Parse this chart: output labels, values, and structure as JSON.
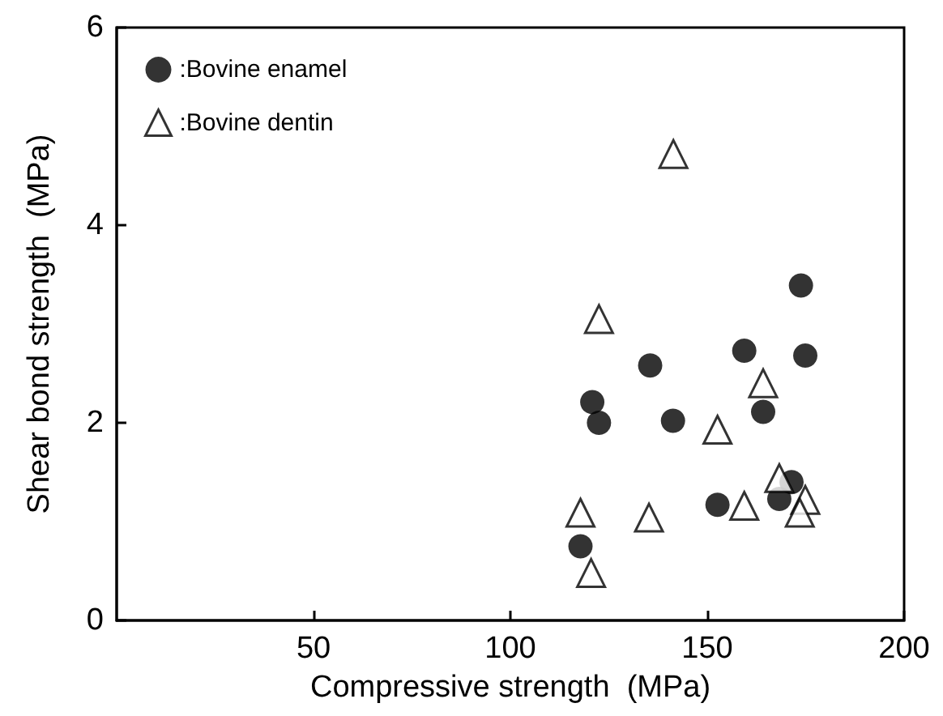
{
  "chart_data": {
    "type": "scatter",
    "xlabel": "Compressive strength  (MPa)",
    "ylabel": "Shear bond strength  (MPa)",
    "xlim": [
      0,
      200
    ],
    "xticks": [
      50,
      100,
      150,
      200
    ],
    "ylim": [
      0,
      6
    ],
    "yticks": [
      0,
      2,
      4,
      6
    ],
    "grid": false,
    "legend": "top left",
    "series": [
      {
        "name": ":Bovine enamel",
        "color": "#000000",
        "marker": "circle",
        "x": [
          173.8,
          159.4,
          174.9,
          135.5,
          120.8,
          122.5,
          141.3,
          164.2,
          152.6,
          171.4,
          168.3,
          117.8
        ],
        "values": [
          3.39,
          2.73,
          2.68,
          2.58,
          2.21,
          2.0,
          2.02,
          2.11,
          1.17,
          1.4,
          1.23,
          0.75
        ]
      },
      {
        "name": ":Bovine dentin",
        "color": "#000000",
        "marker": "triangle",
        "x": [
          141.4,
          122.5,
          164.2,
          152.6,
          168.3,
          174.9,
          173.5,
          159.4,
          135.2,
          117.8,
          120.5
        ],
        "values": [
          4.72,
          3.05,
          2.4,
          1.93,
          1.44,
          1.22,
          1.09,
          1.16,
          1.04,
          1.09,
          0.48
        ]
      }
    ]
  }
}
